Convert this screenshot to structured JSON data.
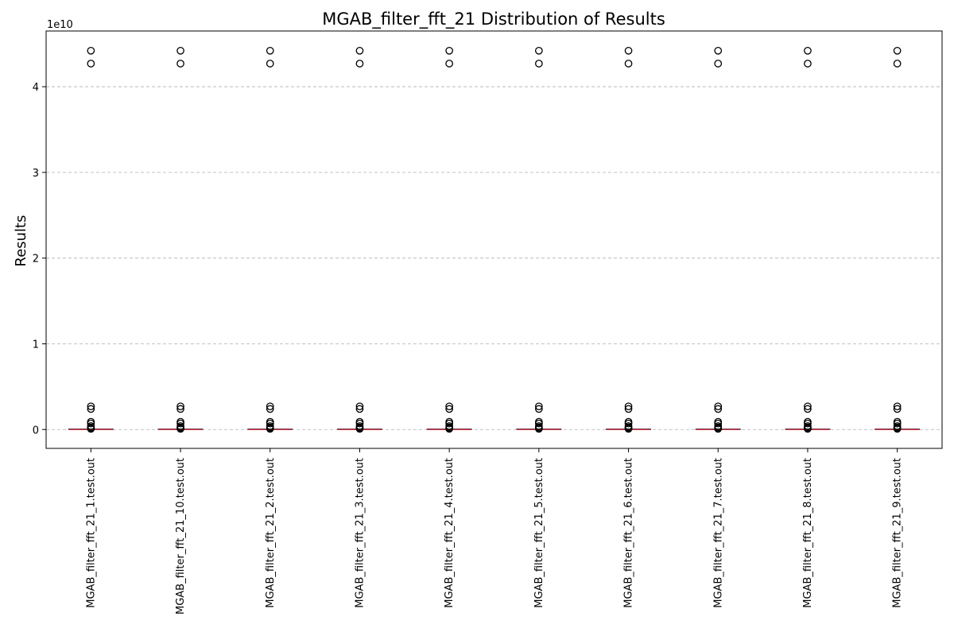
{
  "chart_data": {
    "type": "box",
    "title": "MGAB_filter_fft_21 Distribution of Results",
    "xlabel": "",
    "ylabel": "Results",
    "y_offset_label": "1e10",
    "y_scale": 10000000000,
    "ylim": [
      -2200000000,
      46500000000
    ],
    "yticks": [
      0,
      10000000000,
      20000000000,
      30000000000,
      40000000000
    ],
    "ytick_labels": [
      "0",
      "1",
      "2",
      "3",
      "4"
    ],
    "grid": "y-dashed",
    "colors": {
      "box": "#1f77b4",
      "median": "#d62728",
      "outlier": "#000000",
      "grid": "#b0b0b0"
    },
    "categories": [
      "MGAB_filter_fft_21_1.test.out",
      "MGAB_filter_fft_21_10.test.out",
      "MGAB_filter_fft_21_2.test.out",
      "MGAB_filter_fft_21_3.test.out",
      "MGAB_filter_fft_21_4.test.out",
      "MGAB_filter_fft_21_5.test.out",
      "MGAB_filter_fft_21_6.test.out",
      "MGAB_filter_fft_21_7.test.out",
      "MGAB_filter_fft_21_8.test.out",
      "MGAB_filter_fft_21_9.test.out"
    ],
    "box_stats": {
      "q1": 0,
      "median": 10000000,
      "q3": 30000000,
      "whisker_low": 0,
      "whisker_high": 60000000
    },
    "outliers": [
      44200000000,
      42700000000,
      2700000000,
      2400000000,
      900000000,
      700000000,
      400000000,
      250000000,
      150000000,
      80000000
    ]
  }
}
